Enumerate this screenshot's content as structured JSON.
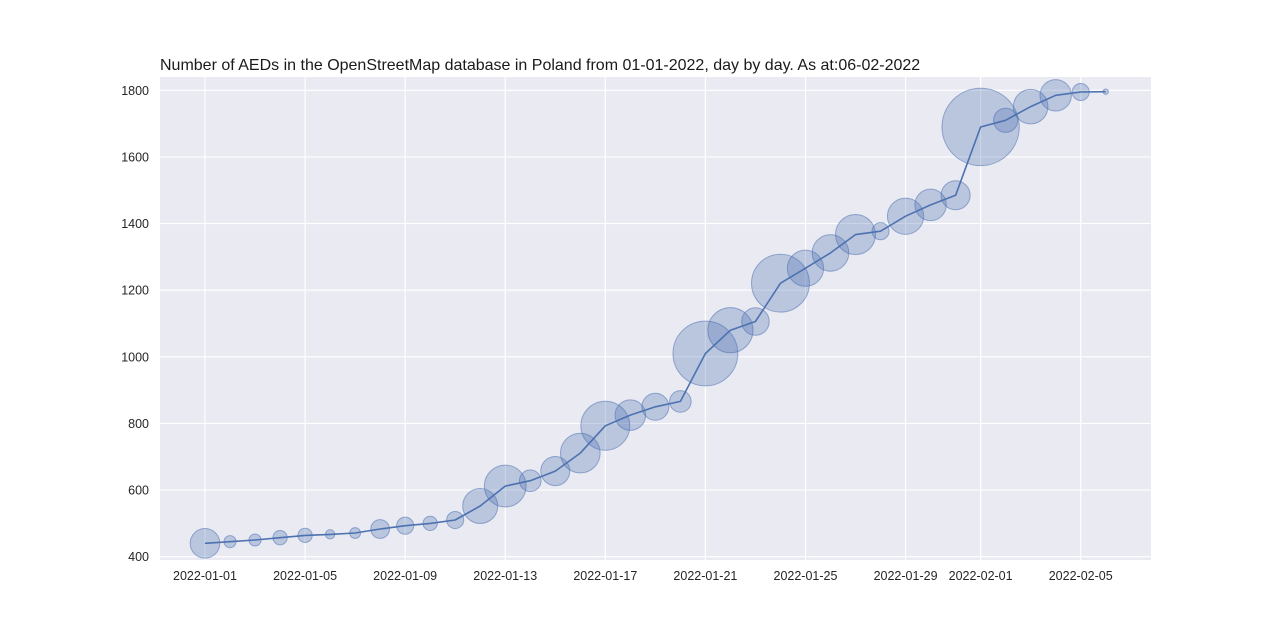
{
  "chart_data": {
    "type": "line",
    "title": "Number of AEDs in the OpenStreetMap database in Poland from 01-01-2022, day by day. As at:06-02-2022",
    "xlabel": "",
    "ylabel": "",
    "ylim": [
      390,
      1840
    ],
    "y_ticks": [
      400,
      600,
      800,
      1000,
      1200,
      1400,
      1600,
      1800
    ],
    "x_ticks": [
      "2022-01-01",
      "2022-01-05",
      "2022-01-09",
      "2022-01-13",
      "2022-01-17",
      "2022-01-21",
      "2022-01-25",
      "2022-01-29",
      "2022-02-01",
      "2022-02-05"
    ],
    "grid": true,
    "marker_size_encodes": "daily increase",
    "x": [
      "2022-01-01",
      "2022-01-02",
      "2022-01-03",
      "2022-01-04",
      "2022-01-05",
      "2022-01-06",
      "2022-01-07",
      "2022-01-08",
      "2022-01-09",
      "2022-01-10",
      "2022-01-11",
      "2022-01-12",
      "2022-01-13",
      "2022-01-14",
      "2022-01-15",
      "2022-01-16",
      "2022-01-17",
      "2022-01-18",
      "2022-01-19",
      "2022-01-20",
      "2022-01-21",
      "2022-01-22",
      "2022-01-23",
      "2022-01-24",
      "2022-01-25",
      "2022-01-26",
      "2022-01-27",
      "2022-01-28",
      "2022-01-29",
      "2022-01-30",
      "2022-01-31",
      "2022-02-01",
      "2022-02-02",
      "2022-02-03",
      "2022-02-04",
      "2022-02-05",
      "2022-02-06"
    ],
    "y": [
      440,
      445,
      450,
      457,
      464,
      467,
      471,
      483,
      493,
      500,
      510,
      552,
      612,
      628,
      657,
      711,
      793,
      825,
      850,
      866,
      1010,
      1080,
      1106,
      1221,
      1266,
      1312,
      1367,
      1377,
      1422,
      1456,
      1485,
      1690,
      1710,
      1751,
      1785,
      1795,
      1796
    ],
    "daily_change": [
      30,
      5,
      5,
      7,
      7,
      3,
      4,
      12,
      10,
      7,
      10,
      42,
      60,
      16,
      29,
      54,
      82,
      32,
      25,
      16,
      144,
      70,
      26,
      115,
      45,
      46,
      55,
      10,
      45,
      34,
      29,
      205,
      20,
      41,
      34,
      10,
      1
    ],
    "colors": {
      "series": "#4c72b0",
      "plot_background": "#eaeaf2",
      "grid": "#ffffff"
    }
  }
}
